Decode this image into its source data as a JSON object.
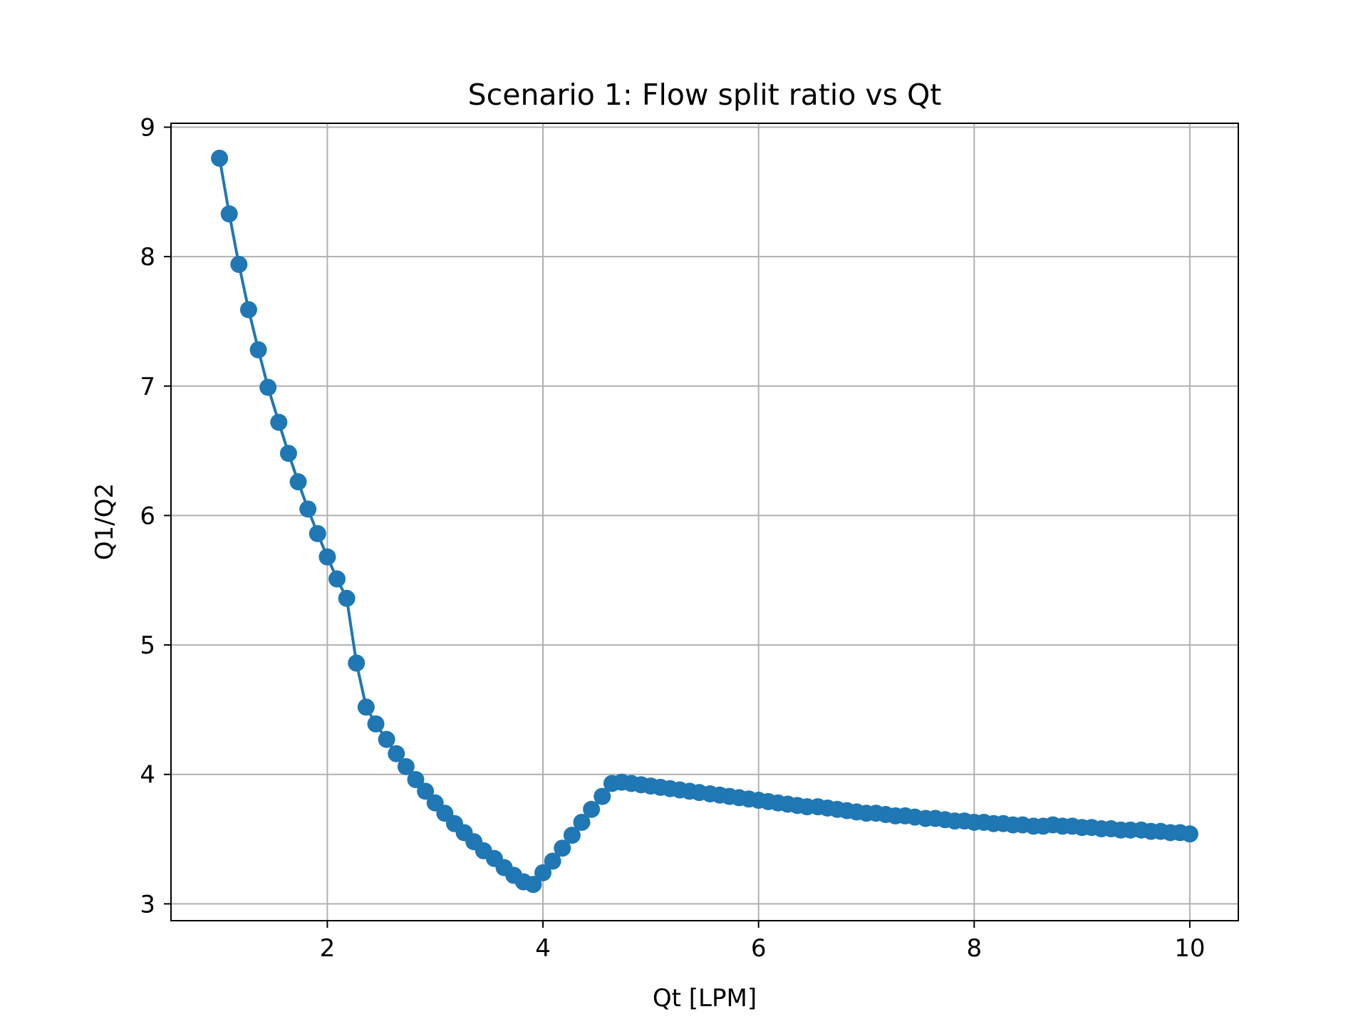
{
  "chart_data": {
    "type": "line",
    "title": "Scenario 1: Flow split ratio vs Qt",
    "xlabel": "Qt [LPM]",
    "ylabel": "Q1/Q2",
    "xlim": [
      0.55,
      10.45
    ],
    "ylim": [
      2.87,
      9.03
    ],
    "xticks": [
      2,
      4,
      6,
      8,
      10
    ],
    "yticks": [
      3,
      4,
      5,
      6,
      7,
      8,
      9
    ],
    "grid": true,
    "legend": null,
    "series": [
      {
        "color": "#1f77b4",
        "marker": "circle",
        "x": [
          1.0,
          1.09,
          1.18,
          1.27,
          1.36,
          1.45,
          1.55,
          1.64,
          1.73,
          1.82,
          1.91,
          2.0,
          2.09,
          2.18,
          2.27,
          2.36,
          2.45,
          2.55,
          2.64,
          2.73,
          2.82,
          2.91,
          3.0,
          3.09,
          3.18,
          3.27,
          3.36,
          3.45,
          3.55,
          3.64,
          3.73,
          3.82,
          3.91,
          4.0,
          4.09,
          4.18,
          4.27,
          4.36,
          4.45,
          4.55,
          4.64,
          4.73,
          4.82,
          4.91,
          5.0,
          5.09,
          5.18,
          5.27,
          5.36,
          5.45,
          5.55,
          5.64,
          5.73,
          5.82,
          5.91,
          6.0,
          6.09,
          6.18,
          6.27,
          6.36,
          6.45,
          6.55,
          6.64,
          6.73,
          6.82,
          6.91,
          7.0,
          7.09,
          7.18,
          7.27,
          7.36,
          7.45,
          7.55,
          7.64,
          7.73,
          7.82,
          7.91,
          8.0,
          8.09,
          8.18,
          8.27,
          8.36,
          8.45,
          8.55,
          8.64,
          8.73,
          8.82,
          8.91,
          9.0,
          9.09,
          9.18,
          9.27,
          9.36,
          9.45,
          9.55,
          9.64,
          9.73,
          9.82,
          9.91,
          10.0
        ],
        "y": [
          8.76,
          8.33,
          7.94,
          7.59,
          7.28,
          6.99,
          6.72,
          6.48,
          6.26,
          6.05,
          5.86,
          5.68,
          5.51,
          5.36,
          4.86,
          4.52,
          4.39,
          4.27,
          4.16,
          4.06,
          3.96,
          3.87,
          3.78,
          3.7,
          3.62,
          3.55,
          3.48,
          3.41,
          3.35,
          3.28,
          3.22,
          3.17,
          3.15,
          3.24,
          3.33,
          3.43,
          3.53,
          3.63,
          3.73,
          3.83,
          3.93,
          3.94,
          3.93,
          3.92,
          3.91,
          3.9,
          3.89,
          3.88,
          3.87,
          3.86,
          3.85,
          3.84,
          3.83,
          3.82,
          3.81,
          3.8,
          3.79,
          3.78,
          3.77,
          3.76,
          3.75,
          3.75,
          3.74,
          3.73,
          3.72,
          3.71,
          3.7,
          3.7,
          3.69,
          3.68,
          3.68,
          3.67,
          3.66,
          3.66,
          3.65,
          3.64,
          3.64,
          3.63,
          3.63,
          3.62,
          3.62,
          3.61,
          3.61,
          3.6,
          3.6,
          3.61,
          3.6,
          3.6,
          3.59,
          3.59,
          3.58,
          3.58,
          3.57,
          3.57,
          3.57,
          3.56,
          3.56,
          3.55,
          3.55,
          3.54
        ]
      }
    ]
  }
}
